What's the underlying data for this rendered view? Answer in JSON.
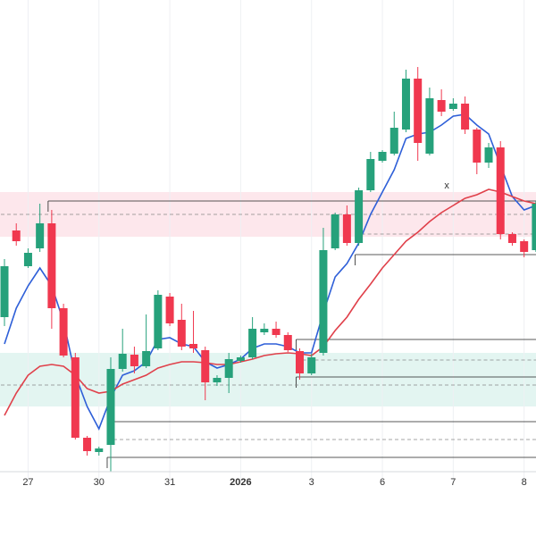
{
  "chart_data": {
    "type": "candlestick",
    "categories": [
      null,
      null,
      "27",
      null,
      null,
      null,
      null,
      null,
      "30",
      null,
      null,
      null,
      null,
      null,
      "31",
      null,
      null,
      null,
      null,
      null,
      "2026",
      null,
      null,
      null,
      null,
      null,
      "3",
      null,
      null,
      null,
      null,
      null,
      "6",
      null,
      null,
      null,
      null,
      null,
      "7",
      null,
      null,
      null,
      null,
      null,
      "8",
      null
    ],
    "open": [
      185,
      282,
      242,
      262,
      290,
      195,
      140,
      50,
      34,
      42,
      127,
      143,
      130,
      150,
      208,
      182,
      155,
      148,
      112,
      117,
      136,
      140,
      168,
      172,
      165,
      147,
      122,
      145,
      262,
      300,
      268,
      327,
      360,
      368,
      395,
      452,
      368,
      428,
      418,
      424,
      395,
      358,
      375,
      278,
      270,
      260
    ],
    "high": [
      250,
      290,
      262,
      312,
      305,
      200,
      145,
      52,
      40,
      140,
      172,
      152,
      188,
      215,
      212,
      200,
      192,
      152,
      120,
      145,
      142,
      185,
      178,
      180,
      168,
      150,
      144,
      285,
      302,
      310,
      330,
      370,
      372,
      415,
      462,
      465,
      442,
      440,
      430,
      432,
      397,
      380,
      382,
      280,
      272,
      315
    ],
    "low": [
      175,
      265,
      240,
      258,
      172,
      140,
      48,
      30,
      30,
      12,
      124,
      122,
      128,
      148,
      175,
      148,
      145,
      92,
      108,
      100,
      134,
      138,
      165,
      162,
      146,
      115,
      120,
      142,
      260,
      265,
      265,
      325,
      358,
      366,
      392,
      360,
      366,
      410,
      416,
      390,
      345,
      352,
      272,
      265,
      252,
      258
    ],
    "close": [
      242,
      270,
      257,
      290,
      195,
      142,
      50,
      35,
      38,
      127,
      144,
      130,
      147,
      210,
      178,
      152,
      150,
      112,
      117,
      138,
      140,
      172,
      172,
      165,
      148,
      122,
      140,
      260,
      300,
      268,
      327,
      362,
      370,
      397,
      452,
      380,
      430,
      415,
      424,
      395,
      358,
      375,
      278,
      268,
      258,
      312
    ],
    "up_color": "#26a17b",
    "down_color": "#f0384f",
    "series": [
      {
        "color": "#2e5fd8",
        "values": [
          155,
          195,
          220,
          240,
          220,
          180,
          120,
          85,
          60,
          95,
          120,
          125,
          135,
          160,
          162,
          155,
          152,
          135,
          128,
          132,
          138,
          150,
          155,
          155,
          152,
          145,
          145,
          190,
          230,
          245,
          268,
          300,
          325,
          350,
          385,
          390,
          392,
          400,
          410,
          412,
          400,
          390,
          355,
          320,
          305,
          310
        ]
      },
      {
        "color": "#e0404a",
        "values": [
          75,
          100,
          120,
          130,
          132,
          130,
          120,
          105,
          100,
          102,
          110,
          115,
          120,
          128,
          132,
          135,
          135,
          134,
          132,
          132,
          135,
          138,
          142,
          144,
          145,
          144,
          142,
          152,
          170,
          185,
          205,
          222,
          240,
          255,
          270,
          280,
          292,
          302,
          310,
          318,
          322,
          328,
          325,
          320,
          315,
          312
        ]
      }
    ],
    "levels": [
      315,
      300,
      278,
      255,
      160,
      137,
      118,
      109,
      68,
      48,
      28
    ],
    "zones": [
      {
        "range": [
          275,
          325
        ],
        "color": "#fde7ec"
      },
      {
        "range": [
          85,
          145
        ],
        "color": "#e3f5f1"
      }
    ],
    "ylim": [
      0,
      540
    ],
    "annotation": "x",
    "grid": true
  }
}
